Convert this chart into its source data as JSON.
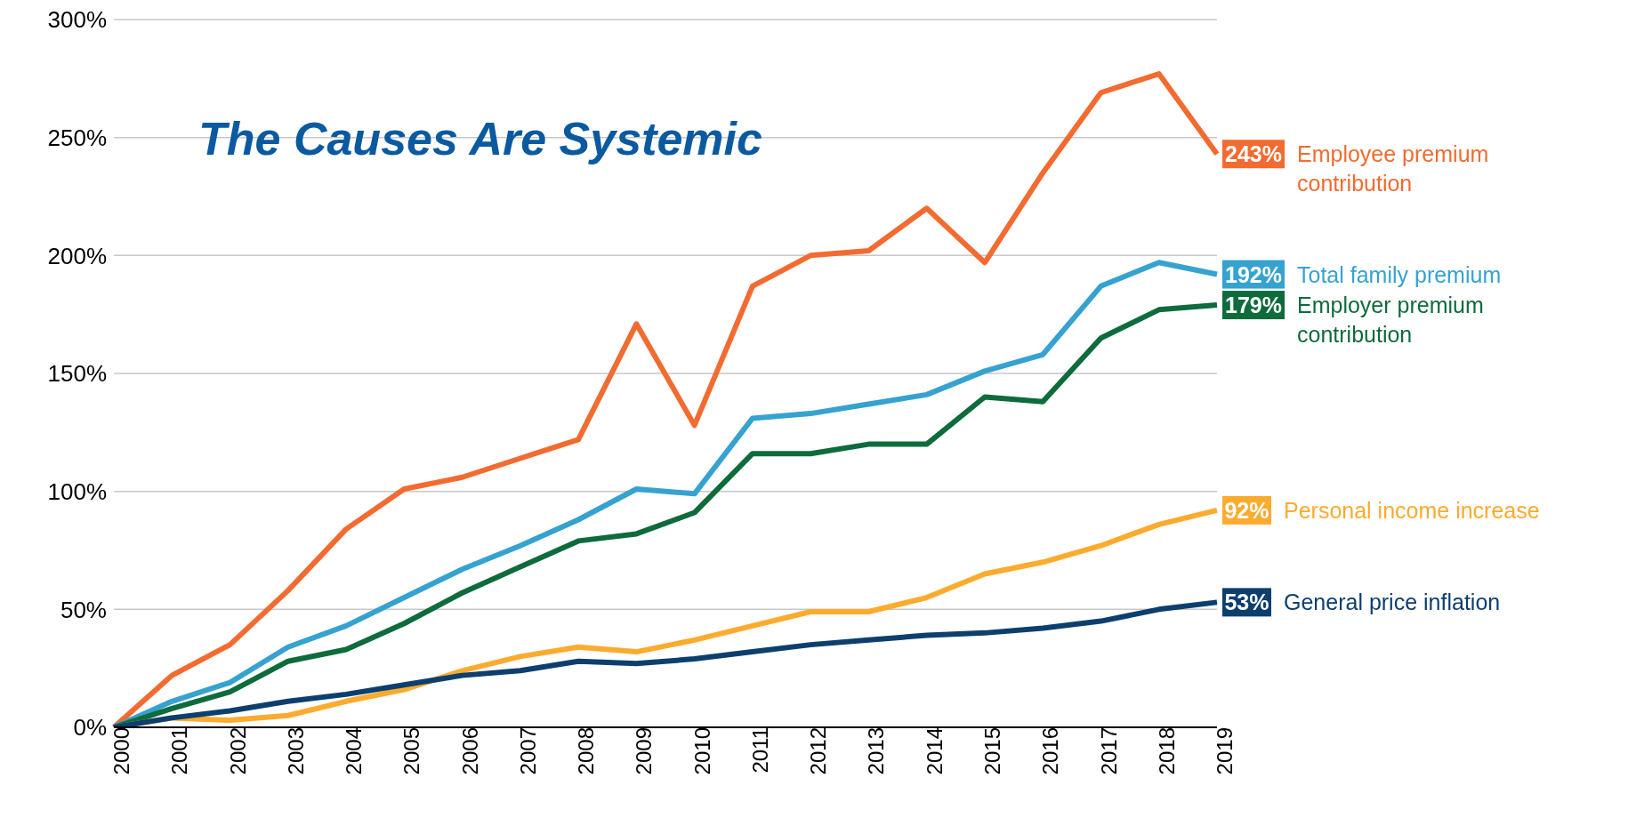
{
  "chart_data": {
    "type": "line",
    "title": "The Causes Are Systemic",
    "categories": [
      "2000",
      "2001",
      "2002",
      "2003",
      "2004",
      "2005",
      "2006",
      "2007",
      "2008",
      "2009",
      "2010",
      "2011",
      "2012",
      "2013",
      "2014",
      "2015",
      "2016",
      "2017",
      "2018",
      "2019"
    ],
    "series": [
      {
        "name": "Employee premium contribution",
        "color": "#f26b30",
        "values": [
          0,
          22,
          35,
          58,
          84,
          101,
          106,
          114,
          122,
          171,
          128,
          187,
          200,
          202,
          220,
          197,
          235,
          269,
          277,
          243
        ],
        "value_labels": [
          null,
          null,
          null,
          null,
          null,
          null,
          null,
          null,
          null,
          null,
          null,
          null,
          null,
          null,
          null,
          null,
          null,
          null,
          null,
          "243%"
        ]
      },
      {
        "name": "Total family premium",
        "color": "#36a2cf",
        "values": [
          0,
          11,
          19,
          34,
          43,
          55,
          67,
          77,
          88,
          101,
          99,
          131,
          133,
          137,
          141,
          151,
          158,
          187,
          197,
          192
        ],
        "value_labels": [
          null,
          null,
          null,
          null,
          null,
          null,
          null,
          null,
          null,
          null,
          null,
          null,
          null,
          null,
          null,
          null,
          null,
          null,
          null,
          "192%"
        ]
      },
      {
        "name": "Employer premium contribution",
        "color": "#0e6b3b",
        "values": [
          0,
          8,
          15,
          28,
          33,
          44,
          57,
          68,
          79,
          82,
          91,
          116,
          116,
          120,
          120,
          140,
          138,
          165,
          177,
          179
        ],
        "value_labels": [
          null,
          null,
          null,
          null,
          null,
          null,
          null,
          null,
          null,
          null,
          null,
          null,
          null,
          null,
          null,
          null,
          null,
          null,
          null,
          "179%"
        ]
      },
      {
        "name": "Personal income increase",
        "color": "#fbab2e",
        "values": [
          0,
          4,
          3,
          5,
          11,
          16,
          24,
          30,
          34,
          32,
          37,
          43,
          49,
          49,
          55,
          65,
          70,
          77,
          86,
          92
        ],
        "value_labels": [
          null,
          null,
          null,
          null,
          null,
          null,
          null,
          null,
          null,
          null,
          null,
          null,
          null,
          null,
          null,
          null,
          null,
          null,
          null,
          "92%"
        ]
      },
      {
        "name": "General price inflation",
        "color": "#0d3f6e",
        "values": [
          0,
          4,
          7,
          11,
          14,
          18,
          22,
          24,
          28,
          27,
          29,
          32,
          35,
          37,
          39,
          40,
          42,
          45,
          50,
          53
        ],
        "value_labels": [
          null,
          null,
          null,
          null,
          null,
          null,
          null,
          null,
          null,
          null,
          null,
          null,
          null,
          null,
          null,
          null,
          null,
          null,
          null,
          "53%"
        ]
      }
    ],
    "ylim": [
      0,
      300
    ],
    "yticks": [
      {
        "value": 0,
        "label": "0%"
      },
      {
        "value": 50,
        "label": "50%"
      },
      {
        "value": 100,
        "label": "100%"
      },
      {
        "value": 150,
        "label": "150%"
      },
      {
        "value": 200,
        "label": "200%"
      },
      {
        "value": 250,
        "label": "250%"
      },
      {
        "value": 300,
        "label": "300%"
      }
    ],
    "grid": "y",
    "legend": "right",
    "marker": "none",
    "line_style": "solid"
  }
}
